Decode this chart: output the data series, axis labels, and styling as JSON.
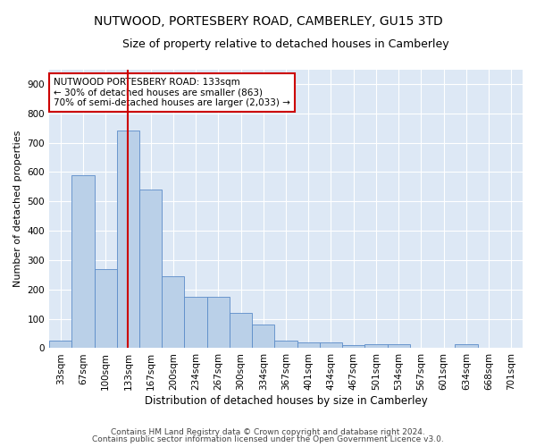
{
  "title": "NUTWOOD, PORTESBERY ROAD, CAMBERLEY, GU15 3TD",
  "subtitle": "Size of property relative to detached houses in Camberley",
  "xlabel": "Distribution of detached houses by size in Camberley",
  "ylabel": "Number of detached properties",
  "categories": [
    "33sqm",
    "67sqm",
    "100sqm",
    "133sqm",
    "167sqm",
    "200sqm",
    "234sqm",
    "267sqm",
    "300sqm",
    "334sqm",
    "367sqm",
    "401sqm",
    "434sqm",
    "467sqm",
    "501sqm",
    "534sqm",
    "567sqm",
    "601sqm",
    "634sqm",
    "668sqm",
    "701sqm"
  ],
  "values": [
    27,
    590,
    270,
    740,
    540,
    245,
    175,
    175,
    120,
    80,
    27,
    20,
    20,
    10,
    13,
    13,
    0,
    0,
    13,
    0,
    0
  ],
  "bar_color": "#bad0e8",
  "bar_edge_color": "#5b8cc8",
  "vline_x_index": 3,
  "vline_color": "#cc0000",
  "annotation_text": "NUTWOOD PORTESBERY ROAD: 133sqm\n← 30% of detached houses are smaller (863)\n70% of semi-detached houses are larger (2,033) →",
  "annotation_box_color": "#ffffff",
  "annotation_border_color": "#cc0000",
  "ylim": [
    0,
    950
  ],
  "yticks": [
    0,
    100,
    200,
    300,
    400,
    500,
    600,
    700,
    800,
    900
  ],
  "background_color": "#dde8f5",
  "grid_color": "#ffffff",
  "footer_line1": "Contains HM Land Registry data © Crown copyright and database right 2024.",
  "footer_line2": "Contains public sector information licensed under the Open Government Licence v3.0.",
  "title_fontsize": 10,
  "subtitle_fontsize": 9,
  "xlabel_fontsize": 8.5,
  "ylabel_fontsize": 8,
  "tick_fontsize": 7.5,
  "annotation_fontsize": 7.5,
  "footer_fontsize": 6.5
}
